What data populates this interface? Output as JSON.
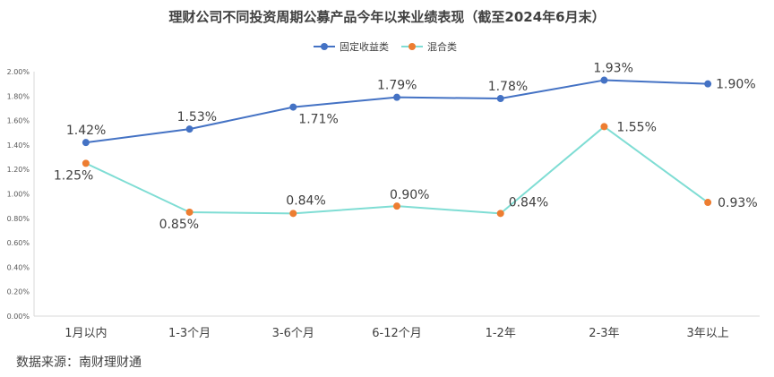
{
  "chart_data": {
    "type": "line",
    "title": "理财公司不同投资周期公募产品今年以来业绩表现（截至2024年6月末）",
    "categories": [
      "1月以内",
      "1-3个月",
      "3-6个月",
      "6-12个月",
      "1-2年",
      "2-3年",
      "3年以上"
    ],
    "y_ticks": [
      "0.00%",
      "0.20%",
      "0.40%",
      "0.60%",
      "0.80%",
      "1.00%",
      "1.20%",
      "1.40%",
      "1.60%",
      "1.80%",
      "2.00%"
    ],
    "ylim": [
      0,
      2.0
    ],
    "ylabel": "",
    "xlabel": "",
    "legend_position": "top-center",
    "grid": false,
    "series": [
      {
        "name": "固定收益类",
        "color": "#4472C4",
        "marker_color": "#4472C4",
        "values": [
          1.42,
          1.53,
          1.71,
          1.79,
          1.78,
          1.93,
          1.9
        ],
        "labels": [
          "1.42%",
          "1.53%",
          "1.71%",
          "1.79%",
          "1.78%",
          "1.93%",
          "1.90%"
        ]
      },
      {
        "name": "混合类",
        "color": "#7FDDD4",
        "marker_color": "#ED7D31",
        "values": [
          1.25,
          0.85,
          0.84,
          0.9,
          0.84,
          1.55,
          0.93
        ],
        "labels": [
          "1.25%",
          "0.85%",
          "0.84%",
          "0.90%",
          "0.84%",
          "1.55%",
          "0.93%"
        ]
      }
    ]
  },
  "source_note": "数据来源：南财理财通"
}
